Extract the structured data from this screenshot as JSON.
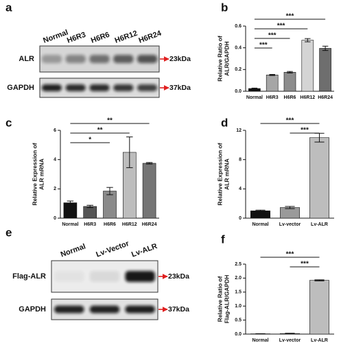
{
  "blots": [
    {
      "panel_label": "a",
      "lanes": [
        "Normal",
        "H6R3",
        "H6R6",
        "H6R12",
        "H6R24"
      ],
      "rows": [
        {
          "name": "ALR",
          "marker": "23kDa"
        },
        {
          "name": "GAPDH",
          "marker": "37kDa"
        }
      ]
    },
    {
      "panel_label": "e",
      "lanes": [
        "Normal",
        "Lv-Vector",
        "Lv-ALR"
      ],
      "rows": [
        {
          "name": "Flag-ALR",
          "marker": "23kDa"
        },
        {
          "name": "GAPDH",
          "marker": "37kDa"
        }
      ]
    }
  ],
  "chart_data": [
    {
      "type": "bar",
      "panel_label": "b",
      "ylabel": [
        "Relative Ratio of",
        "ALR/GAPDH"
      ],
      "categories": [
        "Normal",
        "H6R3",
        "H6R6",
        "H6R12",
        "H6R24"
      ],
      "values": [
        0.025,
        0.15,
        0.175,
        0.47,
        0.395
      ],
      "errors": [
        0.004,
        0.005,
        0.007,
        0.015,
        0.02
      ],
      "colors": [
        "#111111",
        "#a6a6a6",
        "#8c8c8c",
        "#d4d4d4",
        "#6e6e6e"
      ],
      "ylim": [
        0,
        0.6
      ],
      "yticks": [
        {
          "value": 0,
          "label": "0.0"
        },
        {
          "value": 0.2,
          "label": "0.2"
        },
        {
          "value": 0.4,
          "label": "0.4"
        },
        {
          "value": 0.6,
          "label": "0.6"
        }
      ],
      "significance": [
        {
          "between": [
            "Normal",
            "H6R24"
          ],
          "label": "***"
        },
        {
          "between": [
            "Normal",
            "H6R12"
          ],
          "label": "***"
        },
        {
          "between": [
            "Normal",
            "H6R6"
          ],
          "label": "***"
        },
        {
          "between": [
            "Normal",
            "H6R3"
          ],
          "label": "***"
        }
      ]
    },
    {
      "type": "bar",
      "panel_label": "c",
      "ylabel": [
        "Relative Expression of",
        "ALR mRNA"
      ],
      "categories": [
        "Normal",
        "H6R3",
        "H6R6",
        "H6R12",
        "H6R24"
      ],
      "values": [
        1.05,
        0.8,
        1.85,
        4.5,
        3.75
      ],
      "errors": [
        0.12,
        0.08,
        0.25,
        1.05,
        0.05
      ],
      "colors": [
        "#111111",
        "#555555",
        "#8a8a8a",
        "#bdbdbd",
        "#757575"
      ],
      "ylim": [
        0,
        6
      ],
      "yticks": [
        0,
        2,
        4,
        6
      ],
      "significance": [
        {
          "between": [
            "Normal",
            "H6R24"
          ],
          "label": "**"
        },
        {
          "between": [
            "Normal",
            "H6R12"
          ],
          "label": "**"
        },
        {
          "between": [
            "Normal",
            "H6R6"
          ],
          "label": "*"
        }
      ]
    },
    {
      "type": "bar",
      "panel_label": "d",
      "ylabel": [
        "Relative Expression of",
        "ALR mRNA"
      ],
      "categories": [
        "Normal",
        "Lv-vector",
        "Lv-ALR"
      ],
      "values": [
        1.0,
        1.45,
        11.0
      ],
      "errors": [
        0.1,
        0.15,
        0.6
      ],
      "colors": [
        "#111111",
        "#9a9a9a",
        "#bdbdbd"
      ],
      "ylim": [
        0,
        12
      ],
      "yticks": [
        0,
        4,
        8,
        12
      ],
      "significance": [
        {
          "between": [
            "Normal",
            "Lv-ALR"
          ],
          "label": "***"
        },
        {
          "between": [
            "Lv-vector",
            "Lv-ALR"
          ],
          "label": "***"
        }
      ]
    },
    {
      "type": "bar",
      "panel_label": "f",
      "ylabel": [
        "Relative Ratio of",
        "Flag-ALR/GAPDH"
      ],
      "categories": [
        "Normal",
        "Lv-vector",
        "Lv-ALR"
      ],
      "values": [
        0.01,
        0.02,
        1.92
      ],
      "errors": [
        0.005,
        0.01,
        0.02
      ],
      "colors": [
        "#111111",
        "#9a9a9a",
        "#bdbdbd"
      ],
      "ylim": [
        0,
        2.5
      ],
      "yticks": [
        {
          "value": 0,
          "label": "0.0"
        },
        {
          "value": 0.5,
          "label": "0.5"
        },
        {
          "value": 1,
          "label": "1.0"
        },
        {
          "value": 1.5,
          "label": "1.5"
        },
        {
          "value": 2,
          "label": "2.0"
        },
        {
          "value": 2.5,
          "label": "2.5"
        }
      ],
      "significance": [
        {
          "between": [
            "Normal",
            "Lv-ALR"
          ],
          "label": "***"
        },
        {
          "between": [
            "Lv-vector",
            "Lv-ALR"
          ],
          "label": "***"
        }
      ]
    }
  ]
}
